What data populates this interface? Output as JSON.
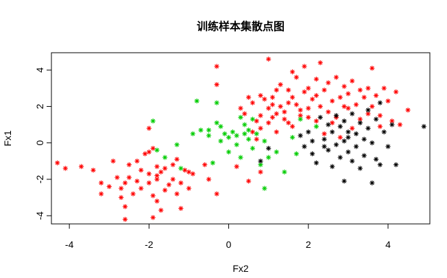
{
  "chart_data": {
    "type": "scatter",
    "title": "训练样本集散点图",
    "xlabel": "Fx2",
    "ylabel": "Fx1",
    "xlim": [
      -4.45,
      5.05
    ],
    "ylim": [
      -4.45,
      4.95
    ],
    "xticks": [
      -4,
      -2,
      0,
      2,
      4
    ],
    "yticks": [
      -4,
      -2,
      0,
      2,
      4
    ],
    "grid": false,
    "marker": "*",
    "series": [
      {
        "color": "#FF0000",
        "points": [
          [
            -4.3,
            -1.1
          ],
          [
            -4.1,
            -1.4
          ],
          [
            -3.7,
            -1.3
          ],
          [
            -3.4,
            -1.5
          ],
          [
            -3.2,
            -2.2
          ],
          [
            -3.2,
            -2.8
          ],
          [
            -3.0,
            -2.4
          ],
          [
            -2.9,
            -1.0
          ],
          [
            -2.8,
            -1.9
          ],
          [
            -2.7,
            -2.5
          ],
          [
            -2.7,
            -3.0
          ],
          [
            -2.6,
            -2.2
          ],
          [
            -2.6,
            -3.5
          ],
          [
            -2.6,
            -4.2
          ],
          [
            -2.5,
            -1.2
          ],
          [
            -2.5,
            -1.9
          ],
          [
            -2.4,
            -2.8
          ],
          [
            -2.3,
            -1.0
          ],
          [
            -2.3,
            -2.1
          ],
          [
            -2.2,
            -2.5
          ],
          [
            -2.1,
            -0.6
          ],
          [
            -2.0,
            -0.5
          ],
          [
            -2.0,
            -1.7
          ],
          [
            -2.0,
            -2.2
          ],
          [
            -1.9,
            -0.3
          ],
          [
            -1.9,
            -2.9
          ],
          [
            -1.9,
            -4.1
          ],
          [
            -1.8,
            -1.3
          ],
          [
            -1.8,
            -2.0
          ],
          [
            -1.8,
            -3.2
          ],
          [
            -1.7,
            -3.7
          ],
          [
            -1.7,
            -1.6
          ],
          [
            -1.6,
            -1.4
          ],
          [
            -1.6,
            -2.6
          ],
          [
            -1.5,
            -2.3
          ],
          [
            -1.4,
            -1.2
          ],
          [
            -1.4,
            -2.0
          ],
          [
            -1.3,
            -2.8
          ],
          [
            -1.3,
            -0.9
          ],
          [
            -1.2,
            -2.2
          ],
          [
            -1.2,
            -3.6
          ],
          [
            -1.1,
            -1.5
          ],
          [
            -1.0,
            -1.6
          ],
          [
            -1.0,
            -2.5
          ],
          [
            -0.9,
            -1.7
          ],
          [
            -2.0,
            0.8
          ],
          [
            -1.8,
            -1.8
          ],
          [
            -2.2,
            -1.5
          ],
          [
            -0.6,
            -1.2
          ],
          [
            -0.5,
            -2.0
          ],
          [
            -0.3,
            4.2
          ],
          [
            -0.3,
            3.2
          ],
          [
            -0.3,
            -2.8
          ],
          [
            0.2,
            -1.3
          ],
          [
            0.5,
            -2.1
          ],
          [
            0.8,
            -1.6
          ],
          [
            0.3,
            1.9
          ],
          [
            0.4,
            1.6
          ],
          [
            0.5,
            2.5
          ],
          [
            0.6,
            2.2
          ],
          [
            0.7,
            1.2
          ],
          [
            0.8,
            2.6
          ],
          [
            0.8,
            1.5
          ],
          [
            0.9,
            2.4
          ],
          [
            1.0,
            4.6
          ],
          [
            1.0,
            1.9
          ],
          [
            1.1,
            2.5
          ],
          [
            1.1,
            1.4
          ],
          [
            1.2,
            0.6
          ],
          [
            1.2,
            2.9
          ],
          [
            1.3,
            2.0
          ],
          [
            1.3,
            3.2
          ],
          [
            1.4,
            1.7
          ],
          [
            1.5,
            2.2
          ],
          [
            1.5,
            1.1
          ],
          [
            1.6,
            3.9
          ],
          [
            1.6,
            2.5
          ],
          [
            1.7,
            3.6
          ],
          [
            1.7,
            2.1
          ],
          [
            1.8,
            1.5
          ],
          [
            1.9,
            2.8
          ],
          [
            1.9,
            4.2
          ],
          [
            2.0,
            3.0
          ],
          [
            2.0,
            1.9
          ],
          [
            2.1,
            2.4
          ],
          [
            2.2,
            3.5
          ],
          [
            2.2,
            1.2
          ],
          [
            2.3,
            2.0
          ],
          [
            2.3,
            4.4
          ],
          [
            2.4,
            2.9
          ],
          [
            2.5,
            1.7
          ],
          [
            2.5,
            3.3
          ],
          [
            2.6,
            2.3
          ],
          [
            2.7,
            3.6
          ],
          [
            2.7,
            1.4
          ],
          [
            2.8,
            2.5
          ],
          [
            2.9,
            3.1
          ],
          [
            3.0,
            1.9
          ],
          [
            3.0,
            2.7
          ],
          [
            3.1,
            3.4
          ],
          [
            3.2,
            2.1
          ],
          [
            3.3,
            2.9
          ],
          [
            3.3,
            1.3
          ],
          [
            3.4,
            2.5
          ],
          [
            3.5,
            3.0
          ],
          [
            3.6,
            4.1
          ],
          [
            3.6,
            2.0
          ],
          [
            3.7,
            2.6
          ],
          [
            3.8,
            1.5
          ],
          [
            3.9,
            3.0
          ],
          [
            4.0,
            2.3
          ],
          [
            4.1,
            1.2
          ],
          [
            4.2,
            2.8
          ],
          [
            4.3,
            1.0
          ],
          [
            4.5,
            1.8
          ],
          [
            0.8,
            0.8
          ],
          [
            1.0,
            1.1
          ],
          [
            1.4,
            1.3
          ],
          [
            1.8,
            1.8
          ],
          [
            2.0,
            1.4
          ],
          [
            0.7,
            0.2
          ],
          [
            1.2,
            1.6
          ],
          [
            2.4,
            0.5
          ],
          [
            2.6,
            1.1
          ],
          [
            0.6,
            0.6
          ],
          [
            1.1,
            2.1
          ],
          [
            1.6,
            0.9
          ],
          [
            2.2,
            2.6
          ],
          [
            3.1,
            0.8
          ],
          [
            3.5,
            1.6
          ],
          [
            3.8,
            0.9
          ],
          [
            2.8,
            0.3
          ],
          [
            1.5,
            2.9
          ],
          [
            2.9,
            2.0
          ]
        ]
      },
      {
        "color": "#00CC00",
        "points": [
          [
            -1.9,
            1.2
          ],
          [
            -1.8,
            -0.4
          ],
          [
            -1.6,
            -0.8
          ],
          [
            -1.3,
            -0.1
          ],
          [
            -1.2,
            -1.4
          ],
          [
            -0.9,
            0.5
          ],
          [
            -0.8,
            2.3
          ],
          [
            -0.7,
            0.7
          ],
          [
            -0.5,
            0.4
          ],
          [
            -0.4,
            -1.1
          ],
          [
            -0.3,
            2.2
          ],
          [
            -0.3,
            1.1
          ],
          [
            -0.2,
            0.9
          ],
          [
            -0.2,
            0.1
          ],
          [
            -0.1,
            0.5
          ],
          [
            0.0,
            0.3
          ],
          [
            0.0,
            -0.5
          ],
          [
            0.1,
            0.6
          ],
          [
            0.2,
            0.4
          ],
          [
            0.2,
            -0.1
          ],
          [
            0.3,
            1.4
          ],
          [
            0.3,
            -0.8
          ],
          [
            0.4,
            1.0
          ],
          [
            0.5,
            0.7
          ],
          [
            0.5,
            0.2
          ],
          [
            0.6,
            1.3
          ],
          [
            0.6,
            -0.3
          ],
          [
            0.7,
            0.5
          ],
          [
            0.8,
            -1.2
          ],
          [
            0.9,
            0.1
          ],
          [
            1.0,
            -0.8
          ],
          [
            1.2,
            -0.5
          ],
          [
            1.4,
            -1.6
          ],
          [
            1.6,
            0.3
          ],
          [
            1.7,
            -0.6
          ],
          [
            1.8,
            1.3
          ],
          [
            2.2,
            0.9
          ],
          [
            0.9,
            -2.5
          ],
          [
            -0.5,
            0.7
          ],
          [
            0.4,
            0.5
          ]
        ]
      },
      {
        "color": "#000000",
        "points": [
          [
            1.0,
            -0.3
          ],
          [
            0.8,
            -1.0
          ],
          [
            1.8,
            0.4
          ],
          [
            1.9,
            -0.2
          ],
          [
            2.0,
            0.6
          ],
          [
            2.1,
            -0.6
          ],
          [
            2.1,
            0.1
          ],
          [
            2.2,
            -1.1
          ],
          [
            2.3,
            1.4
          ],
          [
            2.4,
            0.2
          ],
          [
            2.5,
            -0.4
          ],
          [
            2.5,
            1.0
          ],
          [
            2.6,
            -1.3
          ],
          [
            2.6,
            0.6
          ],
          [
            2.7,
            -0.1
          ],
          [
            2.7,
            1.5
          ],
          [
            2.8,
            -0.8
          ],
          [
            2.8,
            0.9
          ],
          [
            2.9,
            -2.1
          ],
          [
            2.9,
            1.2
          ],
          [
            3.0,
            -0.5
          ],
          [
            3.0,
            0.3
          ],
          [
            3.1,
            1.6
          ],
          [
            3.1,
            -1.0
          ],
          [
            3.2,
            0.5
          ],
          [
            3.2,
            -0.2
          ],
          [
            3.3,
            1.1
          ],
          [
            3.3,
            -1.4
          ],
          [
            3.4,
            0.2
          ],
          [
            3.4,
            -0.7
          ],
          [
            3.5,
            1.8
          ],
          [
            3.5,
            0.8
          ],
          [
            3.6,
            -2.2
          ],
          [
            3.6,
            0.0
          ],
          [
            3.7,
            1.3
          ],
          [
            3.7,
            -0.9
          ],
          [
            3.8,
            2.2
          ],
          [
            3.8,
            -1.2
          ],
          [
            3.9,
            0.6
          ],
          [
            4.0,
            -0.2
          ],
          [
            4.1,
            1.0
          ],
          [
            4.2,
            -1.2
          ],
          [
            4.9,
            0.9
          ],
          [
            2.4,
            -0.2
          ],
          [
            2.9,
            0.1
          ],
          [
            3.0,
            0.6
          ]
        ]
      }
    ]
  }
}
